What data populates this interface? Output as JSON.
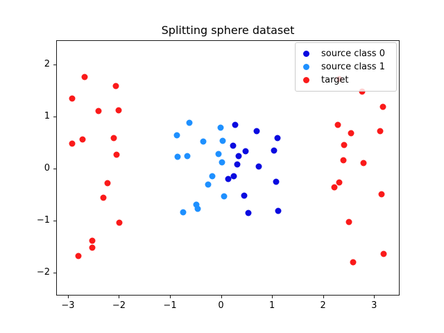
{
  "title": "Splitting sphere dataset",
  "legend": {
    "position": "upper right",
    "items": [
      "source class 0",
      "source class 1",
      "target"
    ]
  },
  "chart_data": {
    "type": "scatter",
    "title": "Splitting sphere dataset",
    "xlabel": "",
    "ylabel": "",
    "grid": false,
    "xlim": [
      -3.23,
      3.5
    ],
    "ylim": [
      -2.44,
      2.47
    ],
    "xticks": [
      -3,
      -2,
      -1,
      0,
      1,
      2,
      3
    ],
    "yticks": [
      -2,
      -1,
      0,
      1,
      2
    ],
    "series": [
      {
        "name": "source class 0",
        "color": "#0a0ae0",
        "points": [
          [
            0.26,
            0.85
          ],
          [
            0.68,
            0.74
          ],
          [
            1.1,
            0.6
          ],
          [
            0.22,
            0.45
          ],
          [
            0.47,
            0.35
          ],
          [
            1.03,
            0.36
          ],
          [
            0.33,
            0.25
          ],
          [
            0.31,
            0.1
          ],
          [
            0.72,
            0.06
          ],
          [
            0.13,
            -0.19
          ],
          [
            0.24,
            -0.13
          ],
          [
            1.07,
            -0.24
          ],
          [
            0.44,
            -0.5
          ],
          [
            0.52,
            -0.84
          ],
          [
            1.11,
            -0.8
          ]
        ]
      },
      {
        "name": "source class 1",
        "color": "#1e90ff",
        "points": [
          [
            -0.63,
            0.89
          ],
          [
            -0.02,
            0.8
          ],
          [
            -0.88,
            0.66
          ],
          [
            -0.36,
            0.54
          ],
          [
            0.02,
            0.55
          ],
          [
            -0.87,
            0.24
          ],
          [
            -0.67,
            0.26
          ],
          [
            -0.06,
            0.29
          ],
          [
            0.0,
            0.14
          ],
          [
            -0.18,
            -0.13
          ],
          [
            -0.27,
            -0.29
          ],
          [
            0.05,
            -0.52
          ],
          [
            -0.5,
            -0.68
          ],
          [
            -0.47,
            -0.76
          ],
          [
            -0.76,
            -0.83
          ]
        ]
      },
      {
        "name": "target",
        "color": "#fa1a1a",
        "points": [
          [
            -2.68,
            1.78
          ],
          [
            -2.08,
            1.6
          ],
          [
            -2.93,
            1.36
          ],
          [
            -2.42,
            1.12
          ],
          [
            -2.02,
            1.13
          ],
          [
            -2.73,
            0.57
          ],
          [
            -2.93,
            0.5
          ],
          [
            -2.11,
            0.6
          ],
          [
            -2.06,
            0.28
          ],
          [
            -2.24,
            -0.26
          ],
          [
            -2.32,
            -0.55
          ],
          [
            -2.01,
            -1.03
          ],
          [
            -2.54,
            -1.37
          ],
          [
            -2.53,
            -1.51
          ],
          [
            -2.81,
            -1.66
          ],
          [
            2.31,
            1.74
          ],
          [
            2.75,
            1.5
          ],
          [
            3.16,
            1.2
          ],
          [
            2.28,
            0.86
          ],
          [
            2.53,
            0.69
          ],
          [
            3.1,
            0.73
          ],
          [
            2.4,
            0.47
          ],
          [
            2.39,
            0.18
          ],
          [
            2.78,
            0.12
          ],
          [
            2.31,
            -0.25
          ],
          [
            2.21,
            -0.34
          ],
          [
            3.13,
            -0.48
          ],
          [
            2.49,
            -1.01
          ],
          [
            3.18,
            -1.63
          ],
          [
            2.58,
            -1.79
          ]
        ]
      }
    ]
  }
}
